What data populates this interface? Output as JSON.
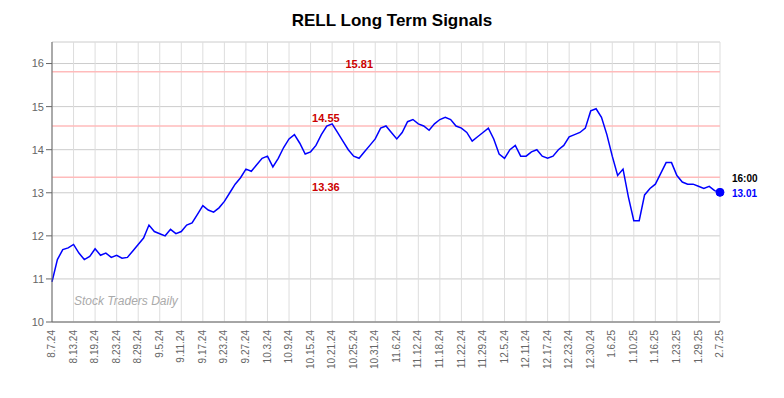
{
  "chart_data": {
    "type": "line",
    "title": "RELL Long Term Signals",
    "categories": [
      "8.7.24",
      null,
      null,
      null,
      "8.13.24",
      null,
      null,
      null,
      "8.19.24",
      null,
      null,
      null,
      "8.23.24",
      null,
      null,
      null,
      "8.29.24",
      null,
      null,
      null,
      "9.5.24",
      null,
      null,
      null,
      "9.11.24",
      null,
      null,
      null,
      "9.17.24",
      null,
      null,
      null,
      "9.23.24",
      null,
      null,
      null,
      "9.27.24",
      null,
      null,
      null,
      "10.3.24",
      null,
      null,
      null,
      "10.9.24",
      null,
      null,
      null,
      "10.15.24",
      null,
      null,
      null,
      "10.21.24",
      null,
      null,
      null,
      "10.25.24",
      null,
      null,
      null,
      "10.31.24",
      null,
      null,
      null,
      "11.6.24",
      null,
      null,
      null,
      "11.12.24",
      null,
      null,
      null,
      "11.18.24",
      null,
      null,
      null,
      "11.22.24",
      null,
      null,
      null,
      "11.29.24",
      null,
      null,
      null,
      "12.5.24",
      null,
      null,
      null,
      "12.11.24",
      null,
      null,
      null,
      "12.17.24",
      null,
      null,
      null,
      "12.23.24",
      null,
      null,
      null,
      "12.30.24",
      null,
      null,
      null,
      "1.6.25",
      null,
      null,
      null,
      "1.10.25",
      null,
      null,
      null,
      "1.16.25",
      null,
      null,
      null,
      "1.23.25",
      null,
      null,
      null,
      "1.29.25",
      null,
      null,
      null,
      "2.7.25"
    ],
    "values": [
      10.93,
      11.45,
      11.68,
      11.72,
      11.8,
      11.6,
      11.45,
      11.52,
      11.7,
      11.55,
      11.6,
      11.5,
      11.55,
      11.48,
      11.5,
      11.65,
      11.8,
      11.95,
      12.25,
      12.1,
      12.05,
      12.0,
      12.15,
      12.05,
      12.1,
      12.25,
      12.3,
      12.5,
      12.7,
      12.6,
      12.55,
      12.65,
      12.8,
      13.0,
      13.2,
      13.35,
      13.55,
      13.5,
      13.65,
      13.8,
      13.85,
      13.6,
      13.8,
      14.05,
      14.25,
      14.35,
      14.15,
      13.9,
      13.95,
      14.1,
      14.35,
      14.55,
      14.6,
      14.4,
      14.2,
      14.0,
      13.85,
      13.8,
      13.95,
      14.1,
      14.25,
      14.5,
      14.55,
      14.4,
      14.25,
      14.4,
      14.65,
      14.7,
      14.6,
      14.55,
      14.45,
      14.6,
      14.7,
      14.75,
      14.7,
      14.55,
      14.5,
      14.4,
      14.2,
      14.3,
      14.4,
      14.5,
      14.25,
      13.9,
      13.8,
      14.0,
      14.1,
      13.85,
      13.85,
      13.95,
      14.0,
      13.85,
      13.8,
      13.85,
      14.0,
      14.1,
      14.3,
      14.35,
      14.4,
      14.5,
      14.9,
      14.95,
      14.75,
      14.35,
      13.85,
      13.4,
      13.55,
      12.9,
      12.35,
      12.35,
      12.95,
      13.1,
      13.2,
      13.45,
      13.7,
      13.7,
      13.4,
      13.25,
      13.2,
      13.2,
      13.15,
      13.1,
      13.15,
      13.05,
      13.01
    ],
    "color": "blue",
    "ylim": [
      10,
      16.5
    ],
    "yticks": [
      10,
      11,
      12,
      13,
      14,
      15,
      16
    ],
    "grid": true,
    "hlines": [
      {
        "value": 15.81,
        "label": "15.81",
        "color": "#ffbbbb"
      },
      {
        "value": 14.55,
        "label": "14.55",
        "color": "#ffbbbb"
      },
      {
        "value": 13.36,
        "label": "13.36",
        "color": "#ffbbbb"
      }
    ],
    "watermark": "Stock Traders Daily",
    "annotations": [
      {
        "text": "16:00",
        "color": "black"
      },
      {
        "text": "13.01",
        "color": "blue"
      }
    ]
  }
}
